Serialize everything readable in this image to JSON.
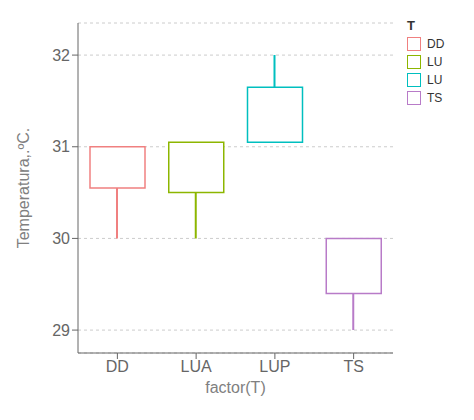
{
  "chart_data": {
    "type": "box",
    "categories": [
      "DD",
      "LUA",
      "LUP",
      "TS"
    ],
    "series": [
      {
        "name": "DD",
        "color": "#F08080",
        "q1": 30.55,
        "q3": 31.0,
        "whisker_low": 30.0,
        "whisker_high": null
      },
      {
        "name": "LU",
        "color": "#8DB600",
        "q1": 30.5,
        "q3": 31.05,
        "whisker_low": 30.0,
        "whisker_high": null
      },
      {
        "name": "LU",
        "color": "#00BFBF",
        "q1": 31.05,
        "q3": 31.65,
        "whisker_low": null,
        "whisker_high": 32.0
      },
      {
        "name": "TS",
        "color": "#B87BC8",
        "q1": 29.4,
        "q3": 30.0,
        "whisker_low": 29.0,
        "whisker_high": null
      }
    ],
    "xlabel": "factor(T)",
    "ylabel": "Temperatura,.ºC.",
    "ylim": [
      28.75,
      32.35
    ],
    "yticks": [
      29,
      30,
      31,
      32
    ],
    "grid": true,
    "legend": "upper right",
    "legend_title": "T"
  }
}
